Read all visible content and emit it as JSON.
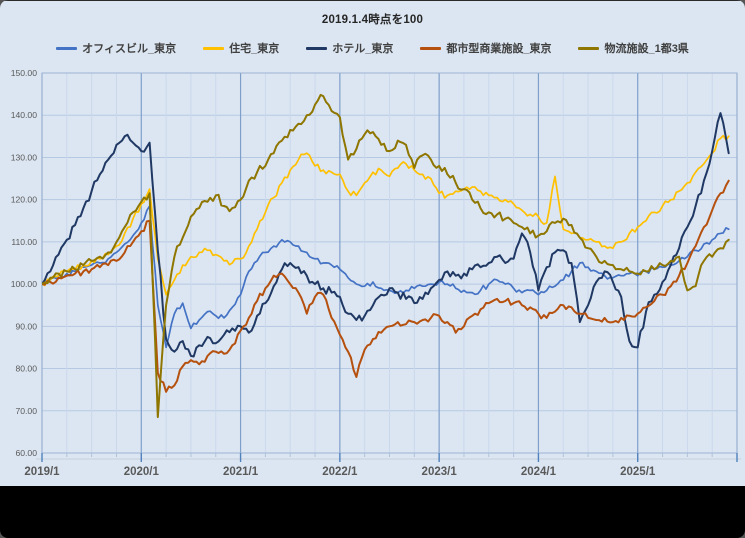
{
  "chart_data": {
    "type": "line",
    "title": "2019.1.4時点を100",
    "x_unit": "month",
    "x_start_label": "2019/1",
    "x_tick_labels": [
      "2019/1",
      "2020/1",
      "2021/1",
      "2022/1",
      "2023/1",
      "2024/1",
      "2025/1"
    ],
    "y_tick_labels": [
      "150.00",
      "140.00",
      "130.00",
      "120.00",
      "110.00",
      "100.00",
      "90.00",
      "80.00",
      "70.00",
      "60.00"
    ],
    "ylim": [
      60,
      150
    ],
    "grid": true,
    "legend_position": "top",
    "colors": {
      "background": "#DCE6F2",
      "grid_h": "#B6C9E2",
      "grid_minor_v": "#CAD8EC",
      "grid_major_v": "#7F9FCB",
      "plot_border": "#9DB3D3",
      "tick_major": "#4F81BD",
      "tick_minor": "#AFC3DC",
      "axis_text": "#595959",
      "title_text": "#262626"
    },
    "series": [
      {
        "name": "オフィスビル_東京",
        "color": "#4472C4",
        "jitter": 0.7,
        "values": [
          100,
          101,
          101.5,
          102.5,
          103,
          104,
          104.5,
          105,
          106,
          107.5,
          109.5,
          111.5,
          114.5,
          118.5,
          95,
          85,
          93,
          95.5,
          89.5,
          91.5,
          93.5,
          92.5,
          92,
          94.5,
          97.5,
          103,
          105.5,
          107.5,
          109,
          110.5,
          110,
          109,
          107.5,
          106,
          105,
          104.5,
          103.5,
          101.5,
          100,
          99.5,
          100.5,
          99,
          98.5,
          98,
          98.5,
          99,
          99.5,
          100,
          100.5,
          100,
          99,
          98.5,
          98,
          98.5,
          100,
          101,
          100,
          99,
          98,
          98.5,
          97.5,
          98.5,
          99.5,
          101,
          103,
          105,
          104,
          103,
          102,
          101.5,
          102,
          102.5,
          102,
          103,
          103.5,
          104,
          104.5,
          105.5,
          106.5,
          108,
          109.5,
          110.5,
          112,
          113
        ]
      },
      {
        "name": "住宅_東京",
        "color": "#FFC000",
        "jitter": 0.8,
        "values": [
          100,
          101,
          102,
          103,
          103.5,
          104.5,
          105.5,
          106,
          107,
          109,
          112,
          115.5,
          119,
          122.5,
          106,
          97.5,
          101,
          104.5,
          106.5,
          107.5,
          108,
          107,
          105.5,
          105,
          106,
          109,
          113,
          117,
          120.5,
          124,
          127,
          129.5,
          131,
          128,
          127,
          126.5,
          126,
          122,
          121,
          124,
          126.5,
          127,
          125.5,
          127.5,
          128.5,
          127,
          126,
          125,
          121.5,
          121,
          122,
          122.5,
          123,
          122,
          121,
          120.5,
          120,
          119,
          117.5,
          116.5,
          116,
          114.5,
          125.5,
          113,
          112,
          111,
          110.5,
          110,
          109,
          108.5,
          110,
          112,
          113.5,
          115,
          117,
          118.5,
          120,
          122,
          124,
          126.5,
          128.5,
          131,
          134.5,
          135
        ]
      },
      {
        "name": "ホテル_東京",
        "color": "#1F3864",
        "jitter": 1.0,
        "values": [
          100,
          103,
          107,
          110.5,
          114,
          118,
          122,
          126,
          129.5,
          133,
          135,
          133.5,
          131.5,
          133.5,
          108,
          87,
          84,
          86.5,
          83,
          85.5,
          87.5,
          86,
          88,
          89.5,
          90,
          88.5,
          92.5,
          95.5,
          99.5,
          103.5,
          105,
          104,
          102,
          100,
          99,
          98,
          97,
          93,
          91.5,
          92.5,
          95,
          97.5,
          99,
          98,
          96.5,
          95.5,
          96.5,
          99,
          101,
          103,
          102,
          102.5,
          103.5,
          104,
          105,
          106.5,
          105,
          106,
          112,
          107.5,
          98.5,
          104,
          107.5,
          108,
          105,
          91,
          95,
          100.5,
          103,
          100.5,
          97,
          86.5,
          85,
          93.5,
          97.5,
          100.5,
          104.5,
          108.5,
          113.5,
          118.5,
          124.5,
          131.5,
          140.5,
          131
        ]
      },
      {
        "name": "都市型商業施設_東京",
        "color": "#B5500E",
        "jitter": 0.8,
        "values": [
          100,
          100.5,
          101.5,
          102,
          102.5,
          103,
          103.5,
          104,
          104.5,
          105.5,
          107.5,
          110,
          112.5,
          115,
          79,
          74.5,
          76,
          80.5,
          82,
          81,
          83,
          84,
          83.5,
          85.5,
          89,
          92,
          96,
          99,
          102,
          102.5,
          100,
          98,
          93,
          97,
          97.5,
          92,
          88,
          84,
          78,
          84.5,
          87,
          88.5,
          90,
          91,
          90.5,
          91,
          91.5,
          92,
          92.5,
          91,
          88.5,
          90,
          92.5,
          94,
          95.5,
          96.5,
          96,
          95.5,
          95,
          94.5,
          93,
          92,
          93.5,
          95,
          94.5,
          93,
          92,
          91.5,
          92,
          91,
          92,
          92.5,
          93,
          94.5,
          96,
          97.5,
          99.5,
          102,
          105,
          109,
          113.5,
          117.5,
          121.5,
          124.5
        ]
      },
      {
        "name": "物流施設_1都3県",
        "color": "#8E7600",
        "jitter": 1.0,
        "values": [
          100,
          101.5,
          102.5,
          103,
          103.5,
          104.5,
          105.5,
          106.5,
          107.5,
          110,
          113.5,
          117,
          119.5,
          121.5,
          68.5,
          95,
          106.5,
          111,
          116,
          118,
          119.5,
          121,
          118.5,
          118,
          120,
          124.5,
          126.5,
          128,
          131,
          134,
          136.5,
          138,
          140,
          142.5,
          144.5,
          141,
          139.5,
          129.5,
          132,
          135.5,
          136,
          133,
          131.5,
          134,
          133,
          127.5,
          130.5,
          129.5,
          128,
          126,
          124,
          122.5,
          120,
          118,
          117,
          116.5,
          115.5,
          114.5,
          113.5,
          112,
          111.5,
          112.5,
          114.5,
          115.5,
          114,
          111,
          108.5,
          106.5,
          105.5,
          104.5,
          103.5,
          103,
          102.5,
          103,
          103.5,
          104.5,
          105.5,
          106.5,
          98.5,
          99.5,
          105.5,
          106.5,
          108.5,
          110.5
        ]
      }
    ]
  }
}
